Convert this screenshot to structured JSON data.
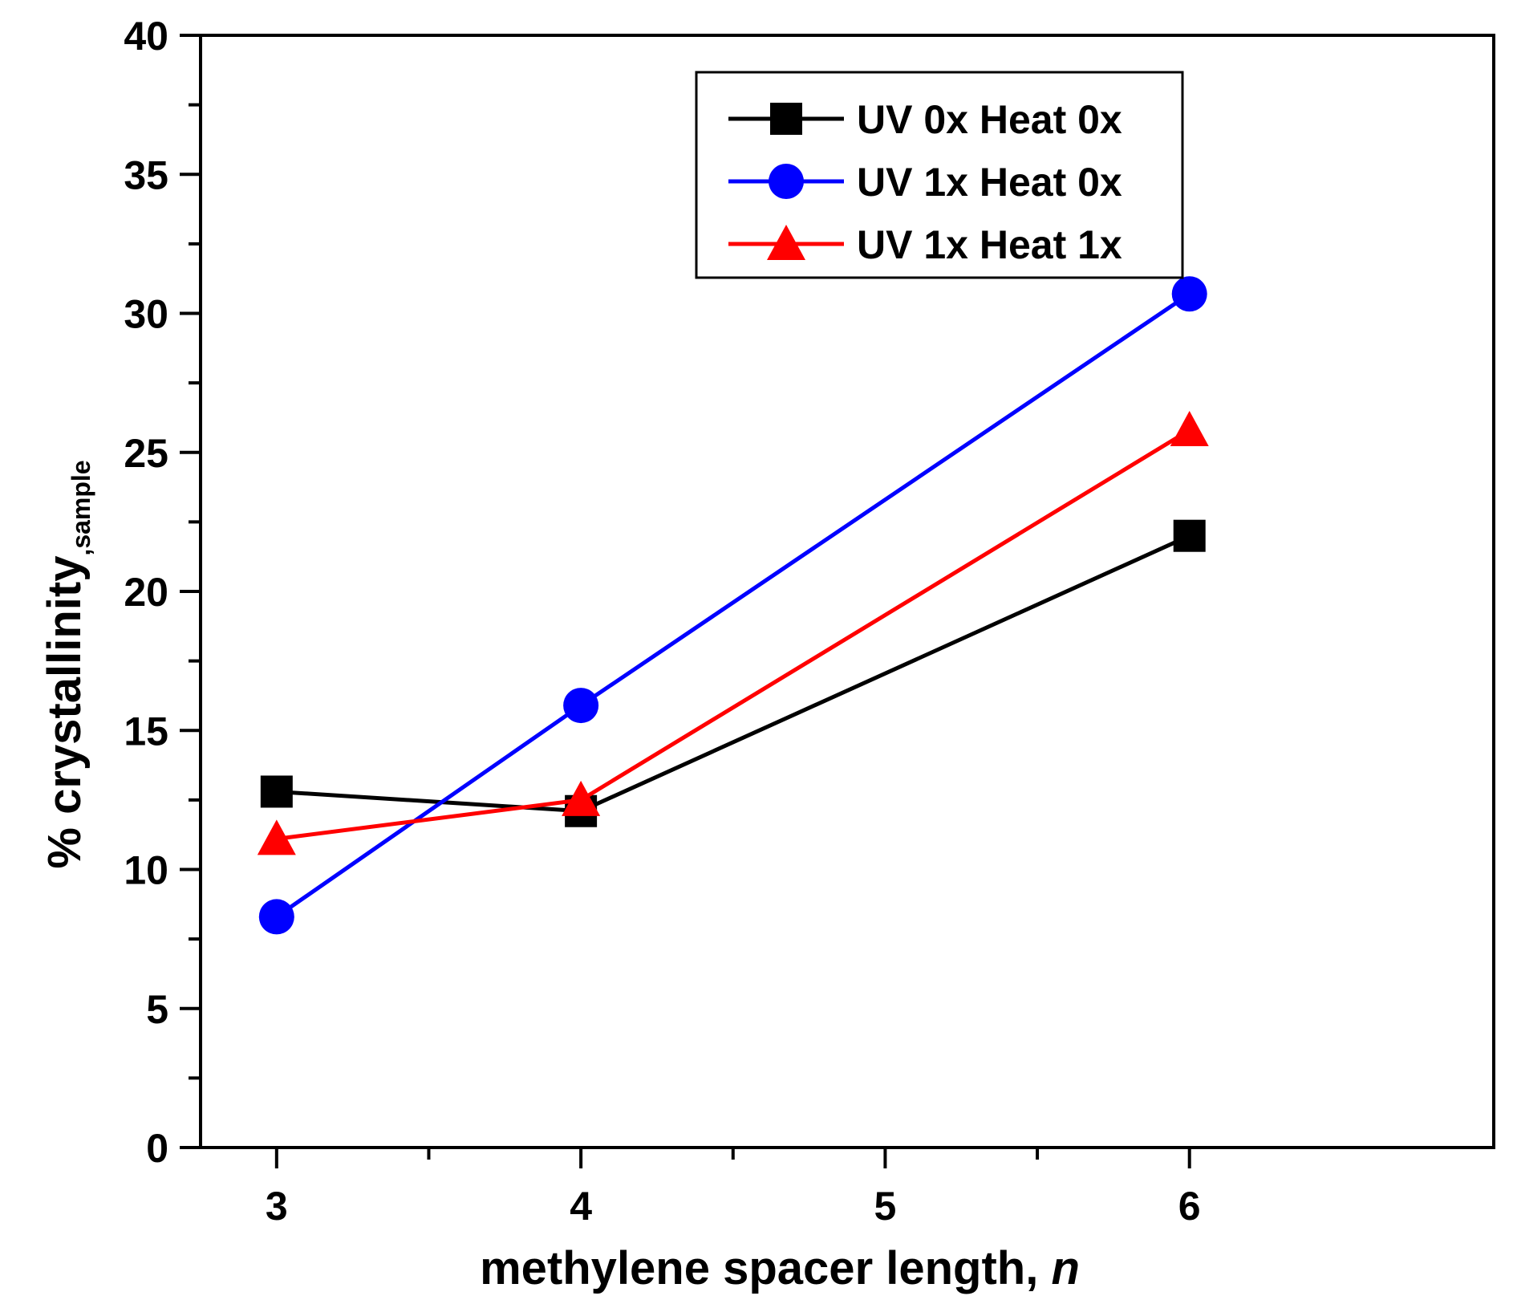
{
  "chart_data": {
    "type": "line",
    "title": "",
    "xlabel": "methylene spacer length, ",
    "xlabel_italic": "n",
    "ylabel": "% crystallinity",
    "ylabel_subscript": ",sample",
    "x": [
      3,
      4,
      6
    ],
    "xlim": [
      2.75,
      7
    ],
    "ylim": [
      0,
      40
    ],
    "x_ticks": [
      3,
      4,
      5,
      6
    ],
    "y_ticks": [
      0,
      5,
      10,
      15,
      20,
      25,
      30,
      35,
      40
    ],
    "grid": false,
    "legend_position": "top-right",
    "series": [
      {
        "name": "UV 0x Heat 0x",
        "values": [
          12.8,
          12.1,
          22.0
        ],
        "color": "#000000",
        "marker": "square"
      },
      {
        "name": "UV 1x Heat 0x",
        "values": [
          8.3,
          15.9,
          30.7
        ],
        "color": "#0000ff",
        "marker": "circle"
      },
      {
        "name": "UV 1x Heat 1x",
        "values": [
          11.1,
          12.5,
          25.8
        ],
        "color": "#ff0000",
        "marker": "triangle"
      }
    ]
  }
}
